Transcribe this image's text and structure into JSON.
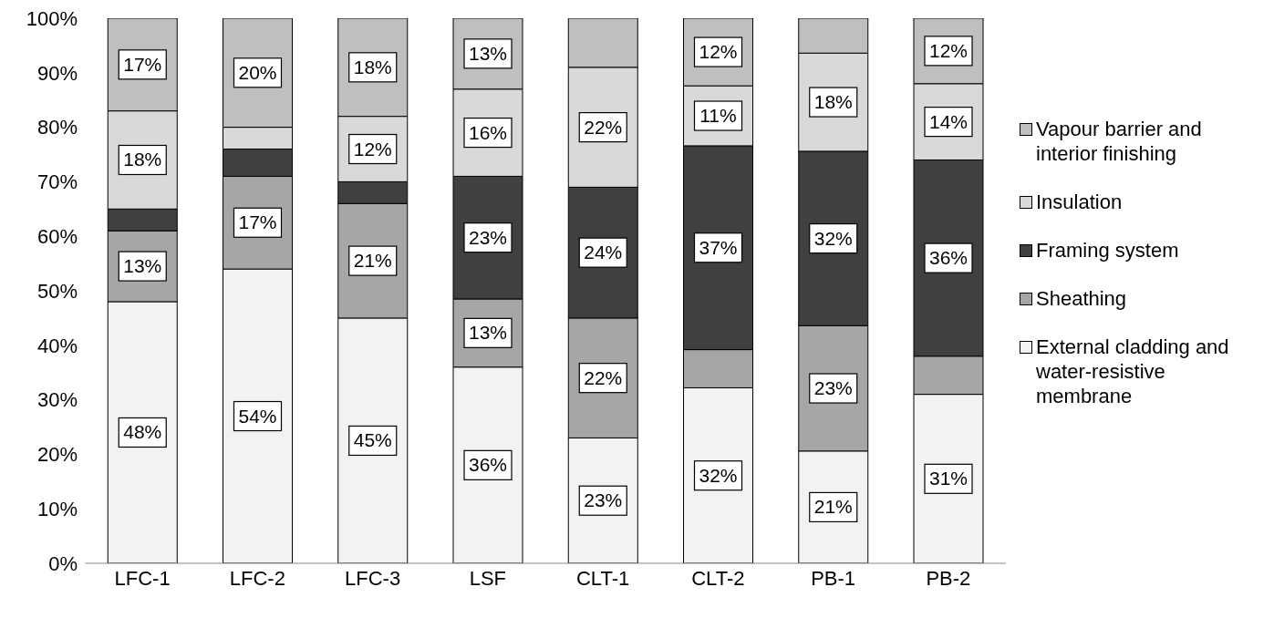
{
  "chart_data": {
    "type": "bar",
    "stacked": true,
    "categories": [
      "LFC-1",
      "LFC-2",
      "LFC-3",
      "LSF",
      "CLT-1",
      "CLT-2",
      "PB-1",
      "PB-2"
    ],
    "series": [
      {
        "name": "External cladding and water-resistive membrane",
        "color": "#f2f2f2",
        "values": [
          48,
          54,
          45,
          36,
          23,
          32.2,
          20.6,
          31
        ],
        "value_labels": [
          "48%",
          "54%",
          "45%",
          "36%",
          "23%",
          "32%",
          "21%",
          "31%"
        ]
      },
      {
        "name": "Sheathing",
        "color": "#a6a6a6",
        "values": [
          13,
          17,
          21,
          12.5,
          22,
          7,
          23,
          7
        ],
        "value_labels": [
          "13%",
          "17%",
          "21%",
          "13%",
          "22%",
          null,
          "23%",
          null
        ]
      },
      {
        "name": "Framing system",
        "color": "#404040",
        "values": [
          4,
          5,
          4,
          22.5,
          24,
          37.4,
          32,
          36
        ],
        "value_labels": [
          null,
          null,
          null,
          "23%",
          "24%",
          "37%",
          "32%",
          "36%"
        ]
      },
      {
        "name": "Insulation",
        "color": "#d9d9d9",
        "values": [
          18,
          4,
          12,
          16,
          22,
          11,
          18,
          14
        ],
        "value_labels": [
          "18%",
          null,
          "12%",
          "16%",
          "22%",
          "11%",
          "18%",
          "14%"
        ]
      },
      {
        "name": "Vapour barrier and interior finishing",
        "color": "#bfbfbf",
        "values": [
          17,
          20,
          18,
          13,
          9,
          12.4,
          6.4,
          12
        ],
        "value_labels": [
          "17%",
          "20%",
          "18%",
          "13%",
          null,
          "12%",
          null,
          "12%"
        ]
      }
    ],
    "ylim": [
      0,
      100
    ],
    "yticks": [
      {
        "value": 0,
        "label": "0%"
      },
      {
        "value": 10,
        "label": "10%"
      },
      {
        "value": 20,
        "label": "20%"
      },
      {
        "value": 30,
        "label": "30%"
      },
      {
        "value": 40,
        "label": "40%"
      },
      {
        "value": 50,
        "label": "50%"
      },
      {
        "value": 60,
        "label": "60%"
      },
      {
        "value": 70,
        "label": "70%"
      },
      {
        "value": 80,
        "label": "80%"
      },
      {
        "value": 90,
        "label": "90%"
      },
      {
        "value": 100,
        "label": "100%"
      }
    ],
    "grid": false,
    "legend": "right"
  }
}
